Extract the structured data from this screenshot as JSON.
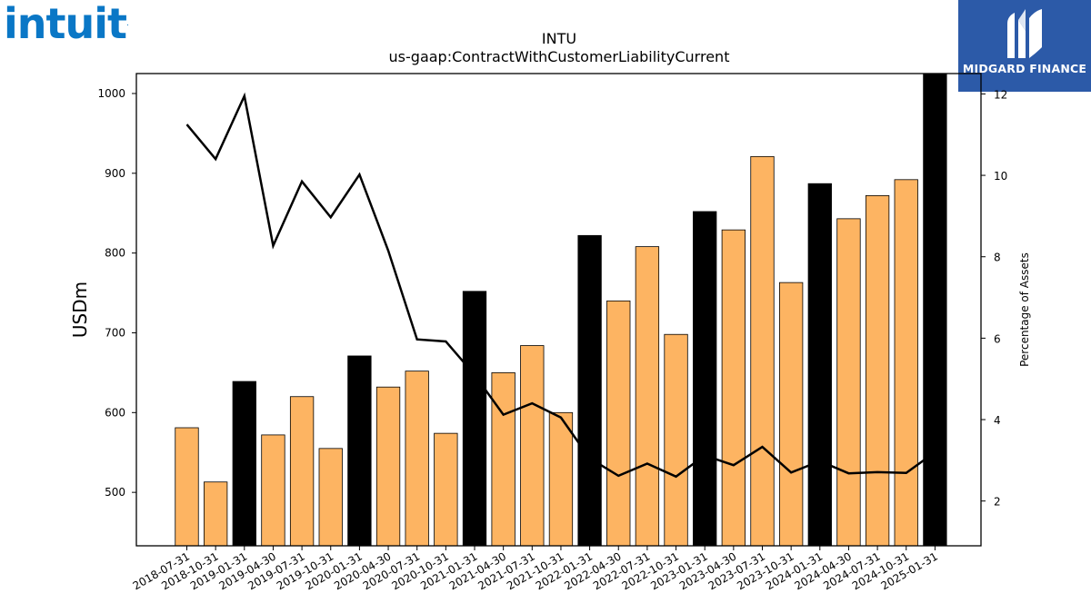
{
  "logos": {
    "left_wordmark": "intuit",
    "left_mark": ".",
    "right_brand": "MIDGARD FINANCE"
  },
  "colors": {
    "bar_regular": "#fdb462",
    "bar_highlight": "#000000",
    "line": "#000000",
    "intuit_blue": "#0a77c6",
    "midgard_bg": "#2c5aa8"
  },
  "chart_data": {
    "type": "bar",
    "title": "INTU",
    "subtitle": "us-gaap:ContractWithCustomerLiabilityCurrent",
    "ylabel": "USDm",
    "y2label": "Percentage of Assets",
    "ylim": [
      433,
      1025
    ],
    "y2lim": [
      0.9,
      12.5
    ],
    "yticks": [
      500,
      600,
      700,
      800,
      900,
      1000
    ],
    "y2ticks": [
      2,
      4,
      6,
      8,
      10,
      12
    ],
    "categories": [
      "2018-07-31",
      "2018-10-31",
      "2019-01-31",
      "2019-04-30",
      "2019-07-31",
      "2019-10-31",
      "2020-01-31",
      "2020-04-30",
      "2020-07-31",
      "2020-10-31",
      "2021-01-31",
      "2021-04-30",
      "2021-07-31",
      "2021-10-31",
      "2022-01-31",
      "2022-04-30",
      "2022-07-31",
      "2022-10-31",
      "2023-01-31",
      "2023-04-30",
      "2023-07-31",
      "2023-10-31",
      "2024-01-31",
      "2024-04-30",
      "2024-07-31",
      "2024-10-31",
      "2025-01-31"
    ],
    "series": [
      {
        "type": "bar",
        "axis": "left",
        "values": [
          581,
          513,
          639,
          572,
          620,
          555,
          671,
          632,
          652,
          574,
          752,
          650,
          684,
          600,
          822,
          740,
          808,
          698,
          852,
          829,
          921,
          763,
          887,
          843,
          872,
          892,
          1045
        ],
        "highlight": [
          false,
          false,
          true,
          false,
          false,
          false,
          true,
          false,
          false,
          false,
          true,
          false,
          false,
          false,
          true,
          false,
          false,
          false,
          true,
          false,
          false,
          false,
          true,
          false,
          false,
          false,
          true
        ]
      },
      {
        "type": "line",
        "axis": "right",
        "values": [
          11.25,
          10.4,
          11.95,
          8.27,
          9.85,
          8.97,
          10.02,
          8.15,
          5.97,
          5.92,
          5.1,
          4.12,
          4.4,
          4.05,
          3.05,
          2.62,
          2.92,
          2.6,
          3.12,
          2.88,
          3.33,
          2.7,
          2.98,
          2.68,
          2.71,
          2.69,
          3.2
        ]
      }
    ]
  }
}
